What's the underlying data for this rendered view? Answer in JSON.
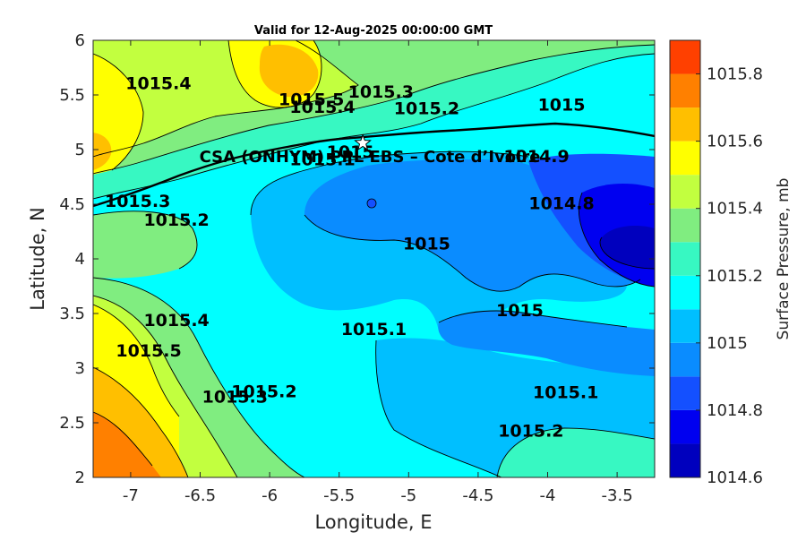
{
  "chart_data": {
    "type": "contour",
    "title": "Valid for 12-Aug-2025 00:00:00 GMT",
    "xlabel": "Longitude, E",
    "ylabel": "Latitude, N",
    "xlim": [
      -7.27,
      -3.23
    ],
    "ylim": [
      2,
      6
    ],
    "xticks": [
      -7,
      -6.5,
      -6,
      -5.5,
      -5,
      -4.5,
      -4,
      -3.5
    ],
    "xtick_labels": [
      "-7",
      "-6.5",
      "-6",
      "-5.5",
      "-5",
      "-4.5",
      "-4",
      "-3.5"
    ],
    "yticks": [
      2,
      2.5,
      3,
      3.5,
      4,
      4.5,
      5,
      5.5,
      6
    ],
    "ytick_labels": [
      "2",
      "2.5",
      "3",
      "3.5",
      "4",
      "4.5",
      "5",
      "5.5",
      "6"
    ],
    "colorbar": {
      "label": "Surface Pressure, mb",
      "range": [
        1014.6,
        1015.9
      ],
      "ticks": [
        1014.6,
        1014.8,
        1015,
        1015.2,
        1015.4,
        1015.6,
        1015.8
      ],
      "tick_labels": [
        "1014.6",
        "1014.8",
        "1015",
        "1015.2",
        "1015.4",
        "1015.6",
        "1015.8"
      ],
      "level_colors": [
        "#0000be",
        "#0000f0",
        "#1450ff",
        "#0a8cff",
        "#00bfff",
        "#00ffff",
        "#37f8c2",
        "#80ed80",
        "#c2ff3f",
        "#ffff00",
        "#ffbf00",
        "#ff8000",
        "#ff4000"
      ]
    },
    "contour_labels": [
      {
        "text": "1015.4",
        "lon": -6.8,
        "lat": 5.6
      },
      {
        "text": "1015.5",
        "lon": -5.7,
        "lat": 5.45
      },
      {
        "text": "1015.4",
        "lon": -5.62,
        "lat": 5.38
      },
      {
        "text": "1015.3",
        "lon": -5.2,
        "lat": 5.52
      },
      {
        "text": "1015.2",
        "lon": -4.87,
        "lat": 5.37
      },
      {
        "text": "1015",
        "lon": -3.9,
        "lat": 5.4
      },
      {
        "text": "1015.1",
        "lon": -5.62,
        "lat": 4.9
      },
      {
        "text": "1015",
        "lon": -5.42,
        "lat": 4.97
      },
      {
        "text": "1014.9",
        "lon": -4.08,
        "lat": 4.93
      },
      {
        "text": "1014.8",
        "lon": -3.9,
        "lat": 4.5
      },
      {
        "text": "1015.3",
        "lon": -6.95,
        "lat": 4.52
      },
      {
        "text": "1015.2",
        "lon": -6.67,
        "lat": 4.35
      },
      {
        "text": "1015",
        "lon": -4.87,
        "lat": 4.13
      },
      {
        "text": "1015",
        "lon": -4.2,
        "lat": 3.52
      },
      {
        "text": "1015.1",
        "lon": -5.25,
        "lat": 3.35
      },
      {
        "text": "1015.4",
        "lon": -6.67,
        "lat": 3.43
      },
      {
        "text": "1015.5",
        "lon": -6.87,
        "lat": 3.15
      },
      {
        "text": "1015.2",
        "lon": -6.04,
        "lat": 2.78
      },
      {
        "text": "1015.3",
        "lon": -6.25,
        "lat": 2.73
      },
      {
        "text": "1015.1",
        "lon": -3.87,
        "lat": 2.77
      },
      {
        "text": "1015.2",
        "lon": -4.12,
        "lat": 2.42
      }
    ],
    "site": {
      "name": "CSA (ONHYM) PPL EBS  – Cote d’Ivoire",
      "lon": -5.33,
      "lat": 5.06
    },
    "grid": false,
    "legend": "colorbar-right"
  },
  "colors": {
    "axis": "#262626",
    "coastline": "#000000"
  }
}
